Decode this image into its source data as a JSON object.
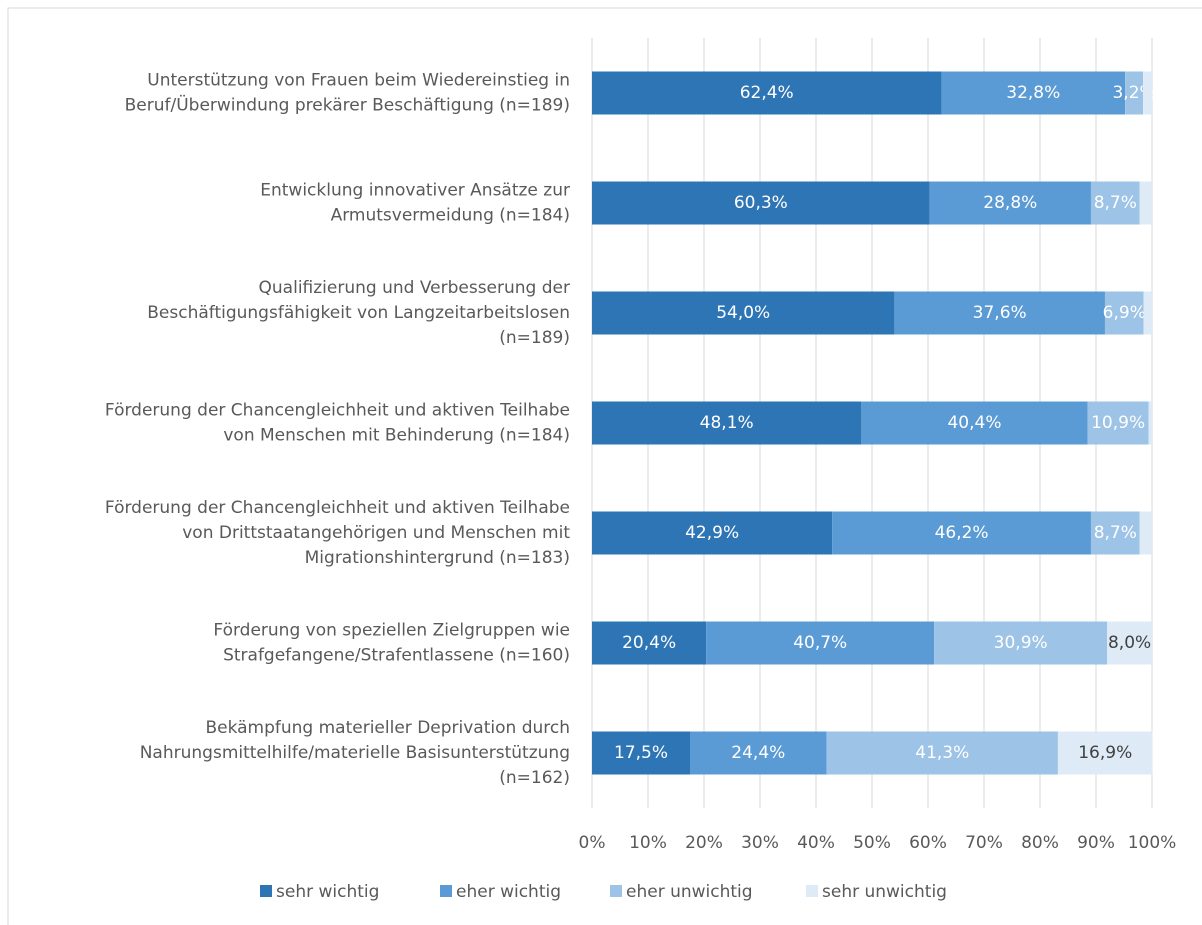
{
  "chart_data": {
    "type": "stacked-bar-horizontal",
    "categories": [
      [
        "Unterstützung von Frauen beim Wiedereinstieg in",
        "Beruf/Überwindung prekärer Beschäftigung  (n=189)"
      ],
      [
        "Entwicklung innovativer Ansätze zur",
        "Armutsvermeidung  (n=184)"
      ],
      [
        "Qualifizierung und Verbesserung der",
        "Beschäftigungsfähigkeit von Langzeitarbeitslosen",
        "(n=189)"
      ],
      [
        "Förderung der Chancengleichheit und aktiven Teilhabe",
        "von Menschen mit Behinderung  (n=184)"
      ],
      [
        "Förderung der Chancengleichheit und aktiven Teilhabe",
        "von Drittstaatangehörigen und Menschen mit",
        "Migrationshintergrund  (n=183)"
      ],
      [
        "Förderung von speziellen Zielgruppen wie",
        "Strafgefangene/Strafentlassene  (n=160)"
      ],
      [
        "Bekämpfung materieller Deprivation durch",
        "Nahrungsmittelhilfe/materielle Basisunterstützung",
        "(n=162)"
      ]
    ],
    "series": [
      {
        "name": "sehr wichtig",
        "color": "#2e75b6",
        "label_color": "#ffffff",
        "values": [
          62.4,
          60.3,
          54.0,
          48.1,
          42.9,
          20.4,
          17.5
        ],
        "value_labels": [
          "62,4%",
          "60,3%",
          "54,0%",
          "48,1%",
          "42,9%",
          "20,4%",
          "17,5%"
        ]
      },
      {
        "name": "eher wichtig",
        "color": "#5b9bd5",
        "label_color": "#ffffff",
        "values": [
          32.8,
          28.8,
          37.6,
          40.4,
          46.2,
          40.7,
          24.4
        ],
        "value_labels": [
          "32,8%",
          "28,8%",
          "37,6%",
          "40,4%",
          "46,2%",
          "40,7%",
          "24,4%"
        ]
      },
      {
        "name": "eher unwichtig",
        "color": "#9dc3e6",
        "label_color": "#ffffff",
        "values": [
          3.2,
          8.7,
          6.9,
          10.9,
          8.7,
          30.9,
          41.3
        ],
        "value_labels": [
          "3,2%",
          "8,7%",
          "6,9%",
          "10,9%",
          "8,7%",
          "30,9%",
          "41,3%"
        ]
      },
      {
        "name": "sehr unwichtig",
        "color": "#deebf7",
        "label_color": "#404040",
        "values": [
          1.6,
          2.2,
          1.5,
          0.6,
          2.2,
          8.0,
          16.9
        ],
        "value_labels": [
          null,
          null,
          null,
          null,
          null,
          "8,0%",
          "16,9%"
        ]
      }
    ],
    "xlim": [
      0,
      100
    ],
    "xticks": [
      {
        "value": 0,
        "label": "0%"
      },
      {
        "value": 10,
        "label": "10%"
      },
      {
        "value": 20,
        "label": "20%"
      },
      {
        "value": 30,
        "label": "30%"
      },
      {
        "value": 40,
        "label": "40%"
      },
      {
        "value": 50,
        "label": "50%"
      },
      {
        "value": 60,
        "label": "60%"
      },
      {
        "value": 70,
        "label": "70%"
      },
      {
        "value": 80,
        "label": "80%"
      },
      {
        "value": 90,
        "label": "90%"
      },
      {
        "value": 100,
        "label": "100%"
      }
    ],
    "grid": true,
    "legend": "bottom"
  }
}
